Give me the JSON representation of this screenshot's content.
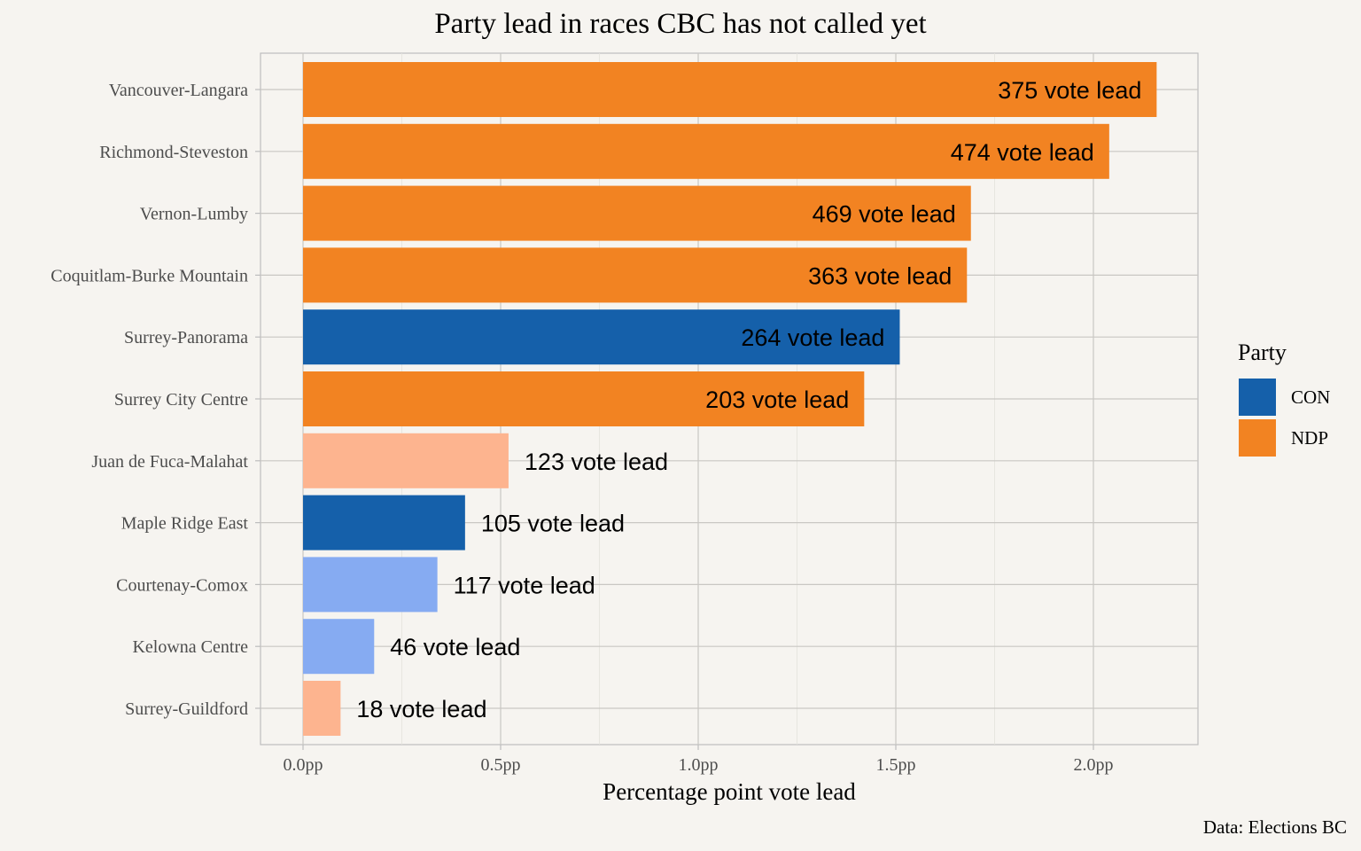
{
  "chart_data": {
    "type": "bar",
    "orientation": "horizontal",
    "title": "Party lead in races CBC has not called yet",
    "xlabel": "Percentage point vote lead",
    "ylabel": "",
    "xlim": [
      0,
      2.2
    ],
    "x_ticks": [
      {
        "value": 0,
        "label": "0.0pp"
      },
      {
        "value": 0.5,
        "label": "0.5pp"
      },
      {
        "value": 1.0,
        "label": "1.0pp"
      },
      {
        "value": 1.5,
        "label": "1.5pp"
      },
      {
        "value": 2.0,
        "label": "2.0pp"
      }
    ],
    "grid": true,
    "legend": {
      "title": "Party",
      "position": "right",
      "entries": [
        {
          "label": "CON",
          "color": "#1560aa"
        },
        {
          "label": "NDP",
          "color": "#f28322"
        }
      ]
    },
    "caption": "Data: Elections BC",
    "categories": [
      "Vancouver-Langara",
      "Richmond-Steveston",
      "Vernon-Lumby",
      "Coquitlam-Burke Mountain",
      "Surrey-Panorama",
      "Surrey City Centre",
      "Juan de Fuca-Malahat",
      "Maple Ridge East",
      "Courtenay-Comox",
      "Kelowna Centre",
      "Surrey-Guildford"
    ],
    "values": [
      2.16,
      2.04,
      1.69,
      1.68,
      1.51,
      1.42,
      0.52,
      0.41,
      0.34,
      0.18,
      0.095
    ],
    "party": [
      "NDP",
      "NDP",
      "NDP",
      "NDP",
      "CON",
      "NDP",
      "NDP",
      "CON",
      "CON",
      "CON",
      "NDP"
    ],
    "colors": [
      "#f28322",
      "#f28322",
      "#f28322",
      "#f28322",
      "#1560aa",
      "#f28322",
      "#fdb48f",
      "#1560aa",
      "#86abf2",
      "#86abf2",
      "#fdb48f"
    ],
    "labels": [
      "375 vote lead",
      "474 vote lead",
      "469 vote lead",
      "363 vote lead",
      "264 vote lead",
      "203 vote lead",
      "123 vote lead",
      "105 vote lead",
      "117 vote lead",
      "46 vote lead",
      "18 vote lead"
    ]
  }
}
